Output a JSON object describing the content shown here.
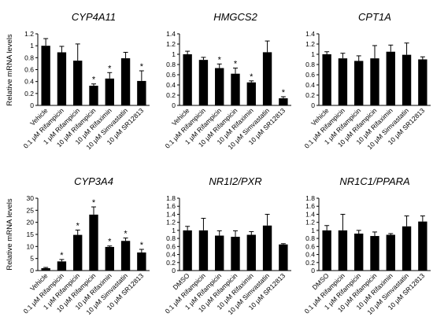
{
  "ylabel": "Relative mRNA levels",
  "chart_data": [
    {
      "type": "bar",
      "title": "CYP4A11",
      "ylabel": "Relative mRNA levels",
      "ylim": [
        0,
        1.2
      ],
      "yticks": [
        0,
        0.2,
        0.4,
        0.6,
        0.8,
        1,
        1.2
      ],
      "categories": [
        "Vehicle",
        "0.1 μM Rifampicin",
        "1 μM Rifampicin",
        "10 μM Rifampicin",
        "10 μM Rifaximin",
        "10 μM Simvastatin",
        "10 μM SR12813"
      ],
      "values": [
        1.0,
        0.89,
        0.75,
        0.33,
        0.45,
        0.79,
        0.41
      ],
      "errors": [
        0.12,
        0.1,
        0.28,
        0.03,
        0.1,
        0.1,
        0.17
      ],
      "significant": [
        false,
        false,
        false,
        true,
        true,
        false,
        true
      ]
    },
    {
      "type": "bar",
      "title": "HMGCS2",
      "ylim": [
        0,
        1.4
      ],
      "yticks": [
        0,
        0.2,
        0.4,
        0.6,
        0.8,
        1,
        1.2,
        1.4
      ],
      "categories": [
        "Vehicle",
        "0.1 μM Rifampicin",
        "1 μM Rifampicin",
        "10 μM Rifampicin",
        "10 μM Rifaximin",
        "10 μM Simvastatin",
        "10 μM SR12813"
      ],
      "values": [
        1.0,
        0.89,
        0.73,
        0.62,
        0.45,
        1.04,
        0.14
      ],
      "errors": [
        0.06,
        0.05,
        0.08,
        0.11,
        0.03,
        0.22,
        0.03
      ],
      "significant": [
        false,
        false,
        true,
        true,
        true,
        false,
        true
      ]
    },
    {
      "type": "bar",
      "title": "CPT1A",
      "ylim": [
        0,
        1.4
      ],
      "yticks": [
        0,
        0.2,
        0.4,
        0.6,
        0.8,
        1,
        1.2,
        1.4
      ],
      "categories": [
        "Vehicle",
        "0.1 μM Rifampicin",
        "1 μM Rifampicin",
        "10 μM Rifampicin",
        "10 μM Rifaximin",
        "10 μM Simvastatin",
        "10 μM SR12813"
      ],
      "values": [
        1.0,
        0.92,
        0.87,
        0.92,
        1.05,
        0.99,
        0.9
      ],
      "errors": [
        0.05,
        0.1,
        0.1,
        0.25,
        0.13,
        0.23,
        0.05
      ],
      "significant": [
        false,
        false,
        false,
        false,
        false,
        false,
        false
      ]
    },
    {
      "type": "bar",
      "title": "CYP3A4",
      "ylabel": "Relative mRNA levels",
      "ylim": [
        0,
        30
      ],
      "yticks": [
        0,
        5,
        10,
        15,
        20,
        25,
        30
      ],
      "categories": [
        "Vehicle",
        "0.1 μM Rifampicin",
        "1 μM Rifampicin",
        "10 μM Rifampicin",
        "10 μM Rifaximin",
        "10 μM Simvastatin",
        "10 μM SR12813"
      ],
      "values": [
        1.0,
        3.8,
        14.8,
        23.2,
        9.8,
        12.3,
        7.5
      ],
      "errors": [
        0.3,
        0.8,
        2.0,
        3.2,
        0.4,
        1.2,
        1.3
      ],
      "significant": [
        false,
        true,
        true,
        true,
        true,
        true,
        true
      ]
    },
    {
      "type": "bar",
      "title": "NR1I2/PXR",
      "ylim": [
        0,
        1.8
      ],
      "yticks": [
        0,
        0.2,
        0.4,
        0.6,
        0.8,
        1,
        1.2,
        1.4,
        1.6,
        1.8
      ],
      "categories": [
        "DMSO",
        "0.1 μM Rifampicin",
        "1 μM Rifampicin",
        "10 μM Rifampicin",
        "10 μM Rifaximin",
        "10 μM Simvastatin",
        "10 μM SR12813"
      ],
      "values": [
        1.0,
        1.0,
        0.87,
        0.84,
        0.89,
        1.12,
        0.65
      ],
      "errors": [
        0.1,
        0.3,
        0.12,
        0.15,
        0.08,
        0.28,
        0.02
      ],
      "significant": [
        false,
        false,
        false,
        false,
        false,
        false,
        false
      ]
    },
    {
      "type": "bar",
      "title": "NR1C1/PPARA",
      "ylim": [
        0,
        1.8
      ],
      "yticks": [
        0,
        0.2,
        0.4,
        0.6,
        0.8,
        1,
        1.2,
        1.4,
        1.6,
        1.8
      ],
      "categories": [
        "DMSO",
        "0.1 μM Rifampicin",
        "1 μM Rifampicin",
        "10 μM Rifampicin",
        "10 μM Rifaximin",
        "10 μM Simvastatin",
        "10 μM SR12813"
      ],
      "values": [
        1.0,
        1.0,
        0.92,
        0.86,
        0.89,
        1.1,
        1.22
      ],
      "errors": [
        0.12,
        0.4,
        0.08,
        0.1,
        0.03,
        0.26,
        0.14
      ],
      "significant": [
        false,
        false,
        false,
        false,
        false,
        false,
        false
      ]
    }
  ]
}
